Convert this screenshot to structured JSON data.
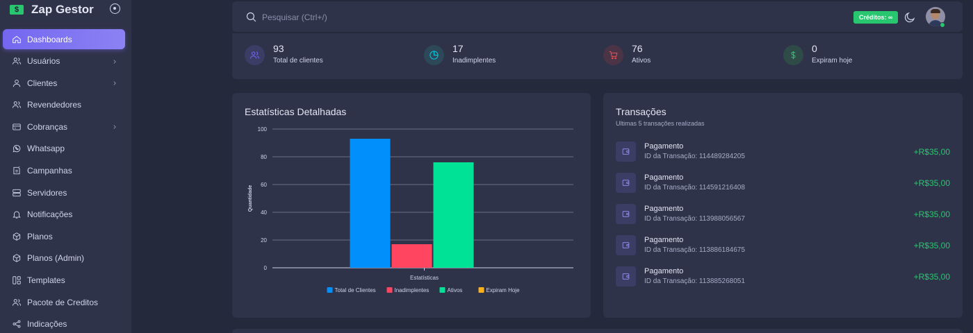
{
  "app": {
    "name": "Zap Gestor",
    "logo_icon": "dollar-bill-icon"
  },
  "sidebar": {
    "items": [
      {
        "label": "Dashboards",
        "icon": "home-icon",
        "active": true,
        "has_children": false
      },
      {
        "label": "Usuários",
        "icon": "users-icon",
        "active": false,
        "has_children": true
      },
      {
        "label": "Clientes",
        "icon": "user-icon",
        "active": false,
        "has_children": true
      },
      {
        "label": "Revendedores",
        "icon": "users-icon",
        "active": false,
        "has_children": false
      },
      {
        "label": "Cobranças",
        "icon": "credit-card-icon",
        "active": false,
        "has_children": true
      },
      {
        "label": "Whatsapp",
        "icon": "whatsapp-icon",
        "active": false,
        "has_children": false
      },
      {
        "label": "Campanhas",
        "icon": "campaign-icon",
        "active": false,
        "has_children": false
      },
      {
        "label": "Servidores",
        "icon": "server-icon",
        "active": false,
        "has_children": false
      },
      {
        "label": "Notificações",
        "icon": "bell-icon",
        "active": false,
        "has_children": false
      },
      {
        "label": "Planos",
        "icon": "box-icon",
        "active": false,
        "has_children": false
      },
      {
        "label": "Planos (Admin)",
        "icon": "box-icon",
        "active": false,
        "has_children": false
      },
      {
        "label": "Templates",
        "icon": "templates-icon",
        "active": false,
        "has_children": false
      },
      {
        "label": "Pacote de Creditos",
        "icon": "users-icon",
        "active": false,
        "has_children": false
      },
      {
        "label": "Indicações",
        "icon": "share-icon",
        "active": false,
        "has_children": false
      }
    ]
  },
  "topbar": {
    "search_placeholder": "Pesquisar (Ctrl+/)",
    "credits_label": "Créditos: ∞",
    "theme_icon": "moon-icon",
    "status_color": "#28c76f"
  },
  "stats": [
    {
      "value": "93",
      "label": "Total de clientes",
      "icon": "users-icon",
      "color": "#7367f0",
      "bg": "#3b3d65"
    },
    {
      "value": "17",
      "label": "Inadimplentes",
      "icon": "pie-chart-icon",
      "color": "#00cfe8",
      "bg": "#2c4859"
    },
    {
      "value": "76",
      "label": "Ativos",
      "icon": "cart-icon",
      "color": "#ea5455",
      "bg": "#4a3446"
    },
    {
      "value": "0",
      "label": "Expiram hoje",
      "icon": "currency-dollar-icon",
      "color": "#28c76f",
      "bg": "#2f4b48"
    }
  ],
  "stats_card": {
    "title": "Estatísticas Detalhadas"
  },
  "chart_data": {
    "type": "bar",
    "categories": [
      "Estatísticas"
    ],
    "series": [
      {
        "name": "Total de Clientes",
        "values": [
          93
        ],
        "color": "#008ffb"
      },
      {
        "name": "Inadimplentes",
        "values": [
          17
        ],
        "color": "#ff4560"
      },
      {
        "name": "Ativos",
        "values": [
          76
        ],
        "color": "#00e396"
      },
      {
        "name": "Expiram Hoje",
        "values": [
          0
        ],
        "color": "#feb019"
      }
    ],
    "ylabel": "Quantidade",
    "xlabel": "",
    "ylim": [
      0,
      100
    ],
    "yticks": [
      0,
      20,
      40,
      60,
      80,
      100
    ],
    "grid": true,
    "legend_position": "bottom"
  },
  "transactions": {
    "title": "Transações",
    "subtitle": "Ultimas 5 transações realizadas",
    "items": [
      {
        "title": "Pagamento",
        "id_text": "ID da Transação: 114489284205",
        "amount": "+R$35,00"
      },
      {
        "title": "Pagamento",
        "id_text": "ID da Transação: 114591216408",
        "amount": "+R$35,00"
      },
      {
        "title": "Pagamento",
        "id_text": "ID da Transação: 113988056567",
        "amount": "+R$35,00"
      },
      {
        "title": "Pagamento",
        "id_text": "ID da Transação: 113886184675",
        "amount": "+R$35,00"
      },
      {
        "title": "Pagamento",
        "id_text": "ID da Transação: 113885268051",
        "amount": "+R$35,00"
      }
    ]
  }
}
